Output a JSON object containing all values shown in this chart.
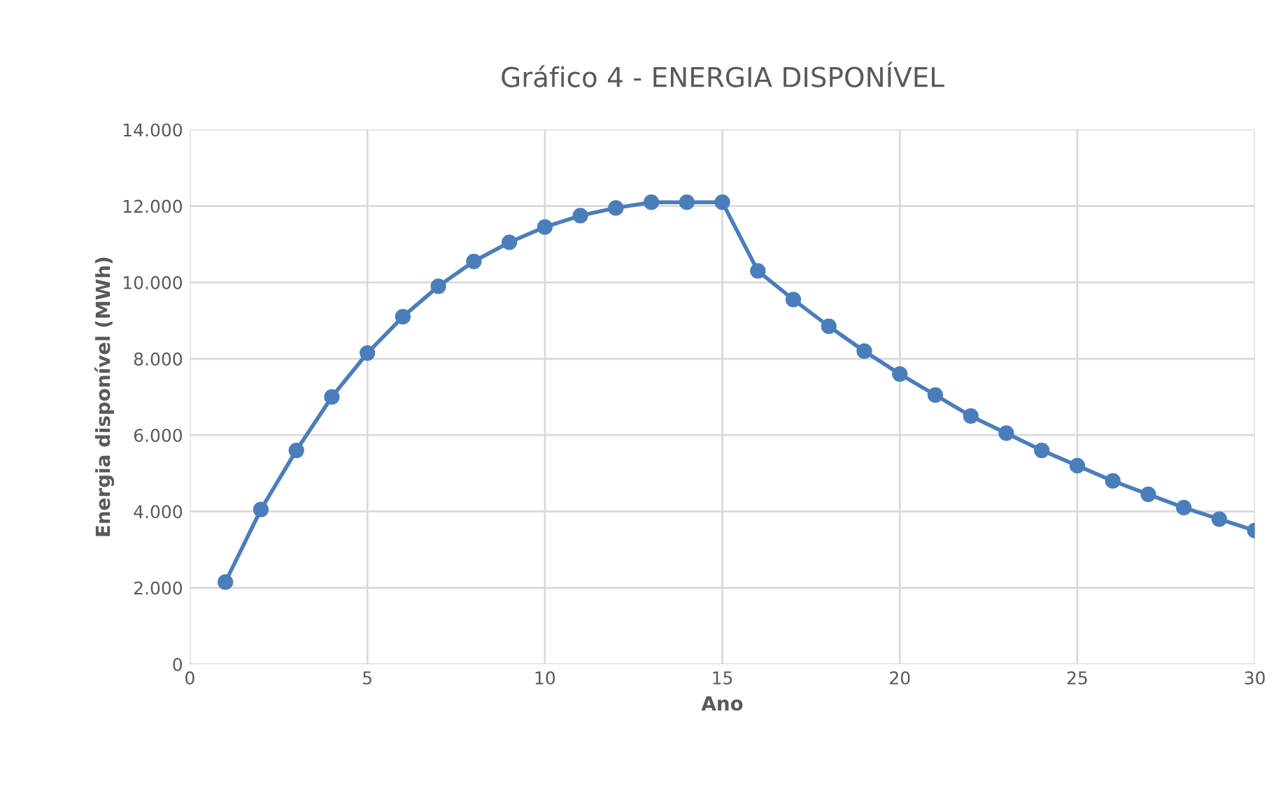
{
  "chart_data": {
    "type": "line",
    "title": "Gráfico 4 - ENERGIA DISPONÍVEL",
    "xlabel": "Ano",
    "ylabel": "Energia disponível (MWh)",
    "x": [
      1,
      2,
      3,
      4,
      5,
      6,
      7,
      8,
      9,
      10,
      11,
      12,
      13,
      14,
      15,
      16,
      17,
      18,
      19,
      20,
      21,
      22,
      23,
      24,
      25,
      26,
      27,
      28,
      29,
      30
    ],
    "series": [
      {
        "color": "#4a7ebb",
        "values": [
          2150,
          4050,
          5600,
          7000,
          8150,
          9100,
          9900,
          10550,
          11050,
          11450,
          11750,
          11950,
          12100,
          12100,
          12100,
          10300,
          9550,
          8850,
          8200,
          7600,
          7050,
          6500,
          6050,
          5600,
          5200,
          4800,
          4450,
          4100,
          3800,
          3500
        ]
      }
    ],
    "xlim": [
      0,
      30
    ],
    "xticks": [
      0,
      5,
      10,
      15,
      20,
      25,
      30
    ],
    "ylim": [
      0,
      14000
    ],
    "yticks": [
      0,
      {
        "value": 2000,
        "label": "2.000"
      },
      {
        "value": 4000,
        "label": "4.000"
      },
      {
        "value": 6000,
        "label": "6.000"
      },
      {
        "value": 8000,
        "label": "8.000"
      },
      {
        "value": 10000,
        "label": "10.000"
      },
      {
        "value": 12000,
        "label": "12.000"
      },
      {
        "value": 14000,
        "label": "14.000"
      }
    ],
    "grid": true,
    "marker": "circle",
    "line_style": "solid",
    "legend": false
  }
}
